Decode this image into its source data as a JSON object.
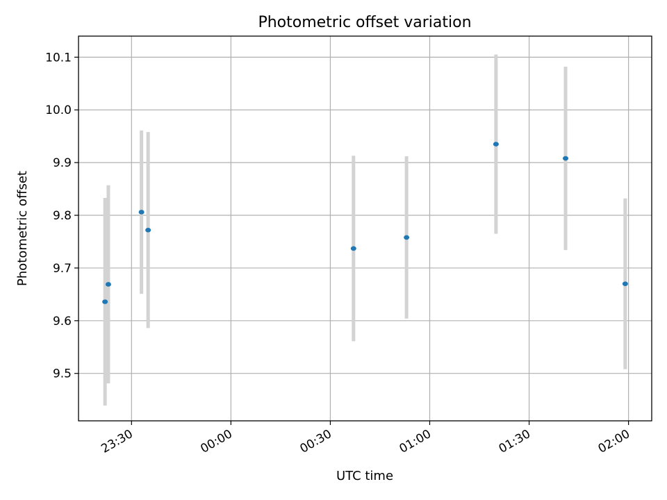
{
  "chart_data": {
    "type": "scatter",
    "title": "Photometric offset variation",
    "xlabel": "UTC time",
    "ylabel": "Photometric offset",
    "x_axis_kind": "time",
    "xlim": [
      "23:14",
      "02:07"
    ],
    "ylim": [
      9.41,
      10.14
    ],
    "xticks": [
      "23:30",
      "00:00",
      "00:30",
      "01:00",
      "01:30",
      "02:00"
    ],
    "yticks": [
      9.5,
      9.6,
      9.7,
      9.8,
      9.9,
      10.0,
      10.1
    ],
    "ytick_labels": [
      "9.5",
      "9.6",
      "9.7",
      "9.8",
      "9.9",
      "10.0",
      "10.1"
    ],
    "grid": true,
    "marker_color": "#1f77b4",
    "errorbar_color": "#d3d3d3",
    "points": [
      {
        "x": "23:22",
        "y": 9.636,
        "yerr": 0.197
      },
      {
        "x": "23:23",
        "y": 9.669,
        "yerr": 0.188
      },
      {
        "x": "23:33",
        "y": 9.806,
        "yerr": 0.155
      },
      {
        "x": "23:35",
        "y": 9.772,
        "yerr": 0.186
      },
      {
        "x": "00:37",
        "y": 9.737,
        "yerr": 0.176
      },
      {
        "x": "00:53",
        "y": 9.758,
        "yerr": 0.154
      },
      {
        "x": "01:20",
        "y": 9.935,
        "yerr": 0.17
      },
      {
        "x": "01:41",
        "y": 9.908,
        "yerr": 0.174
      },
      {
        "x": "01:59",
        "y": 9.67,
        "yerr": 0.162
      }
    ]
  }
}
